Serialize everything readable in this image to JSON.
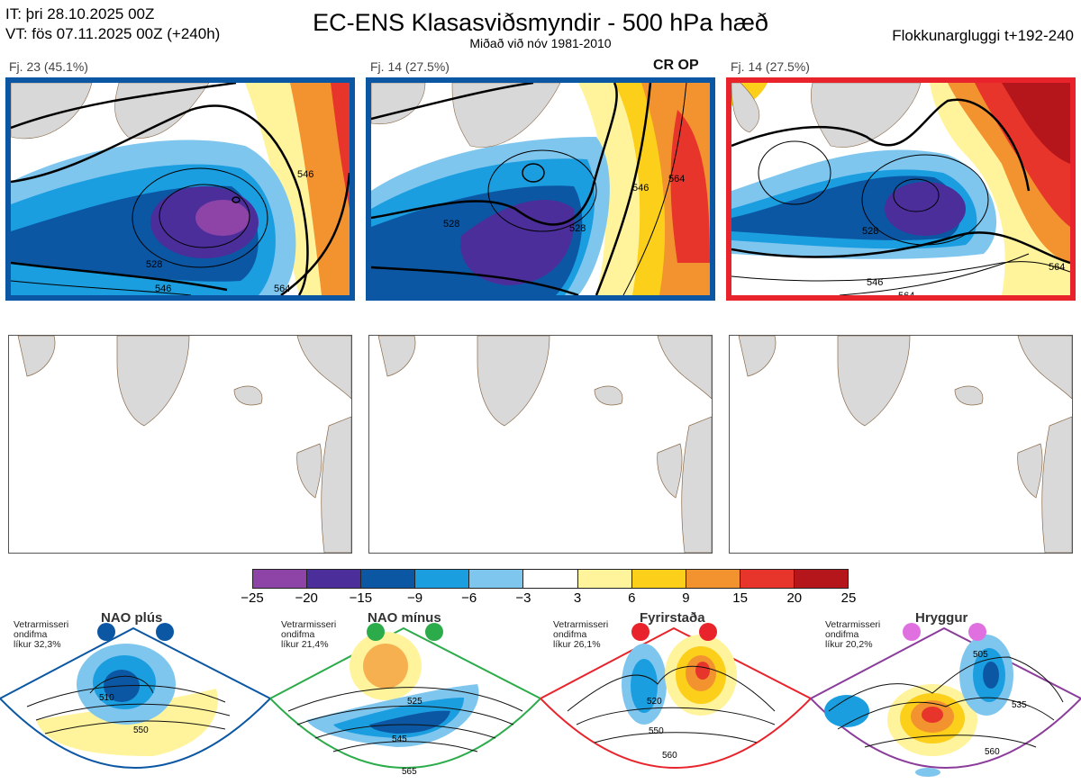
{
  "header": {
    "it": "IT: þri 28.10.2025 00Z",
    "vt": "VT: fös 07.11.2025 00Z  (+240h)",
    "title": "EC-ENS Klasasviðsmyndir - 500 hPa hæð",
    "subtitle": "Miðað við nóv 1981-2010",
    "right": "Flokkunargluggi t+192-240"
  },
  "panels": [
    {
      "label": "Fj. 23 (45.1%)",
      "border_color": "#0b57a4",
      "tag": "",
      "contours": [
        "528",
        "546",
        "546",
        "564"
      ]
    },
    {
      "label": "Fj. 14 (27.5%)",
      "border_color": "#0b57a4",
      "tag": "CR OP",
      "contours": [
        "528",
        "528",
        "546",
        "564"
      ]
    },
    {
      "label": "Fj. 14 (27.5%)",
      "border_color": "#e8232b",
      "tag": "",
      "contours": [
        "528",
        "546",
        "564",
        "564"
      ]
    }
  ],
  "colorbar": {
    "ticks": [
      "−25",
      "−20",
      "−15",
      "−9",
      "−6",
      "−3",
      "3",
      "6",
      "9",
      "15",
      "20",
      "25"
    ],
    "colors": [
      "#8e44a6",
      "#4b2e9a",
      "#0b57a4",
      "#1a9ee0",
      "#7fc6ef",
      "#ffffff",
      "#fff39c",
      "#fccf1a",
      "#f39330",
      "#e8352b",
      "#b5161b"
    ]
  },
  "regimes": [
    {
      "name": "NAO plús",
      "note": [
        "Vetrarmisseri",
        "ondifma",
        "líkur 32,3%"
      ],
      "color": "#0b57a4",
      "contours": [
        "510",
        "550"
      ]
    },
    {
      "name": "NAO mínus",
      "note": [
        "Vetrarmisseri",
        "ondifma",
        "líkur 21,4%"
      ],
      "color": "#2cab4a",
      "contours": [
        "525",
        "545",
        "565"
      ]
    },
    {
      "name": "Fyrirstaða",
      "note": [
        "Vetrarmisseri",
        "ondifma",
        "líkur 26,1%"
      ],
      "color": "#e8232b",
      "contours": [
        "520",
        "550",
        "560"
      ]
    },
    {
      "name": "Hryggur",
      "note": [
        "Vetrarmisseri",
        "ondifma",
        "líkur 20,2%"
      ],
      "color": "#e070e0",
      "contours": [
        "505",
        "535",
        "560"
      ]
    }
  ]
}
